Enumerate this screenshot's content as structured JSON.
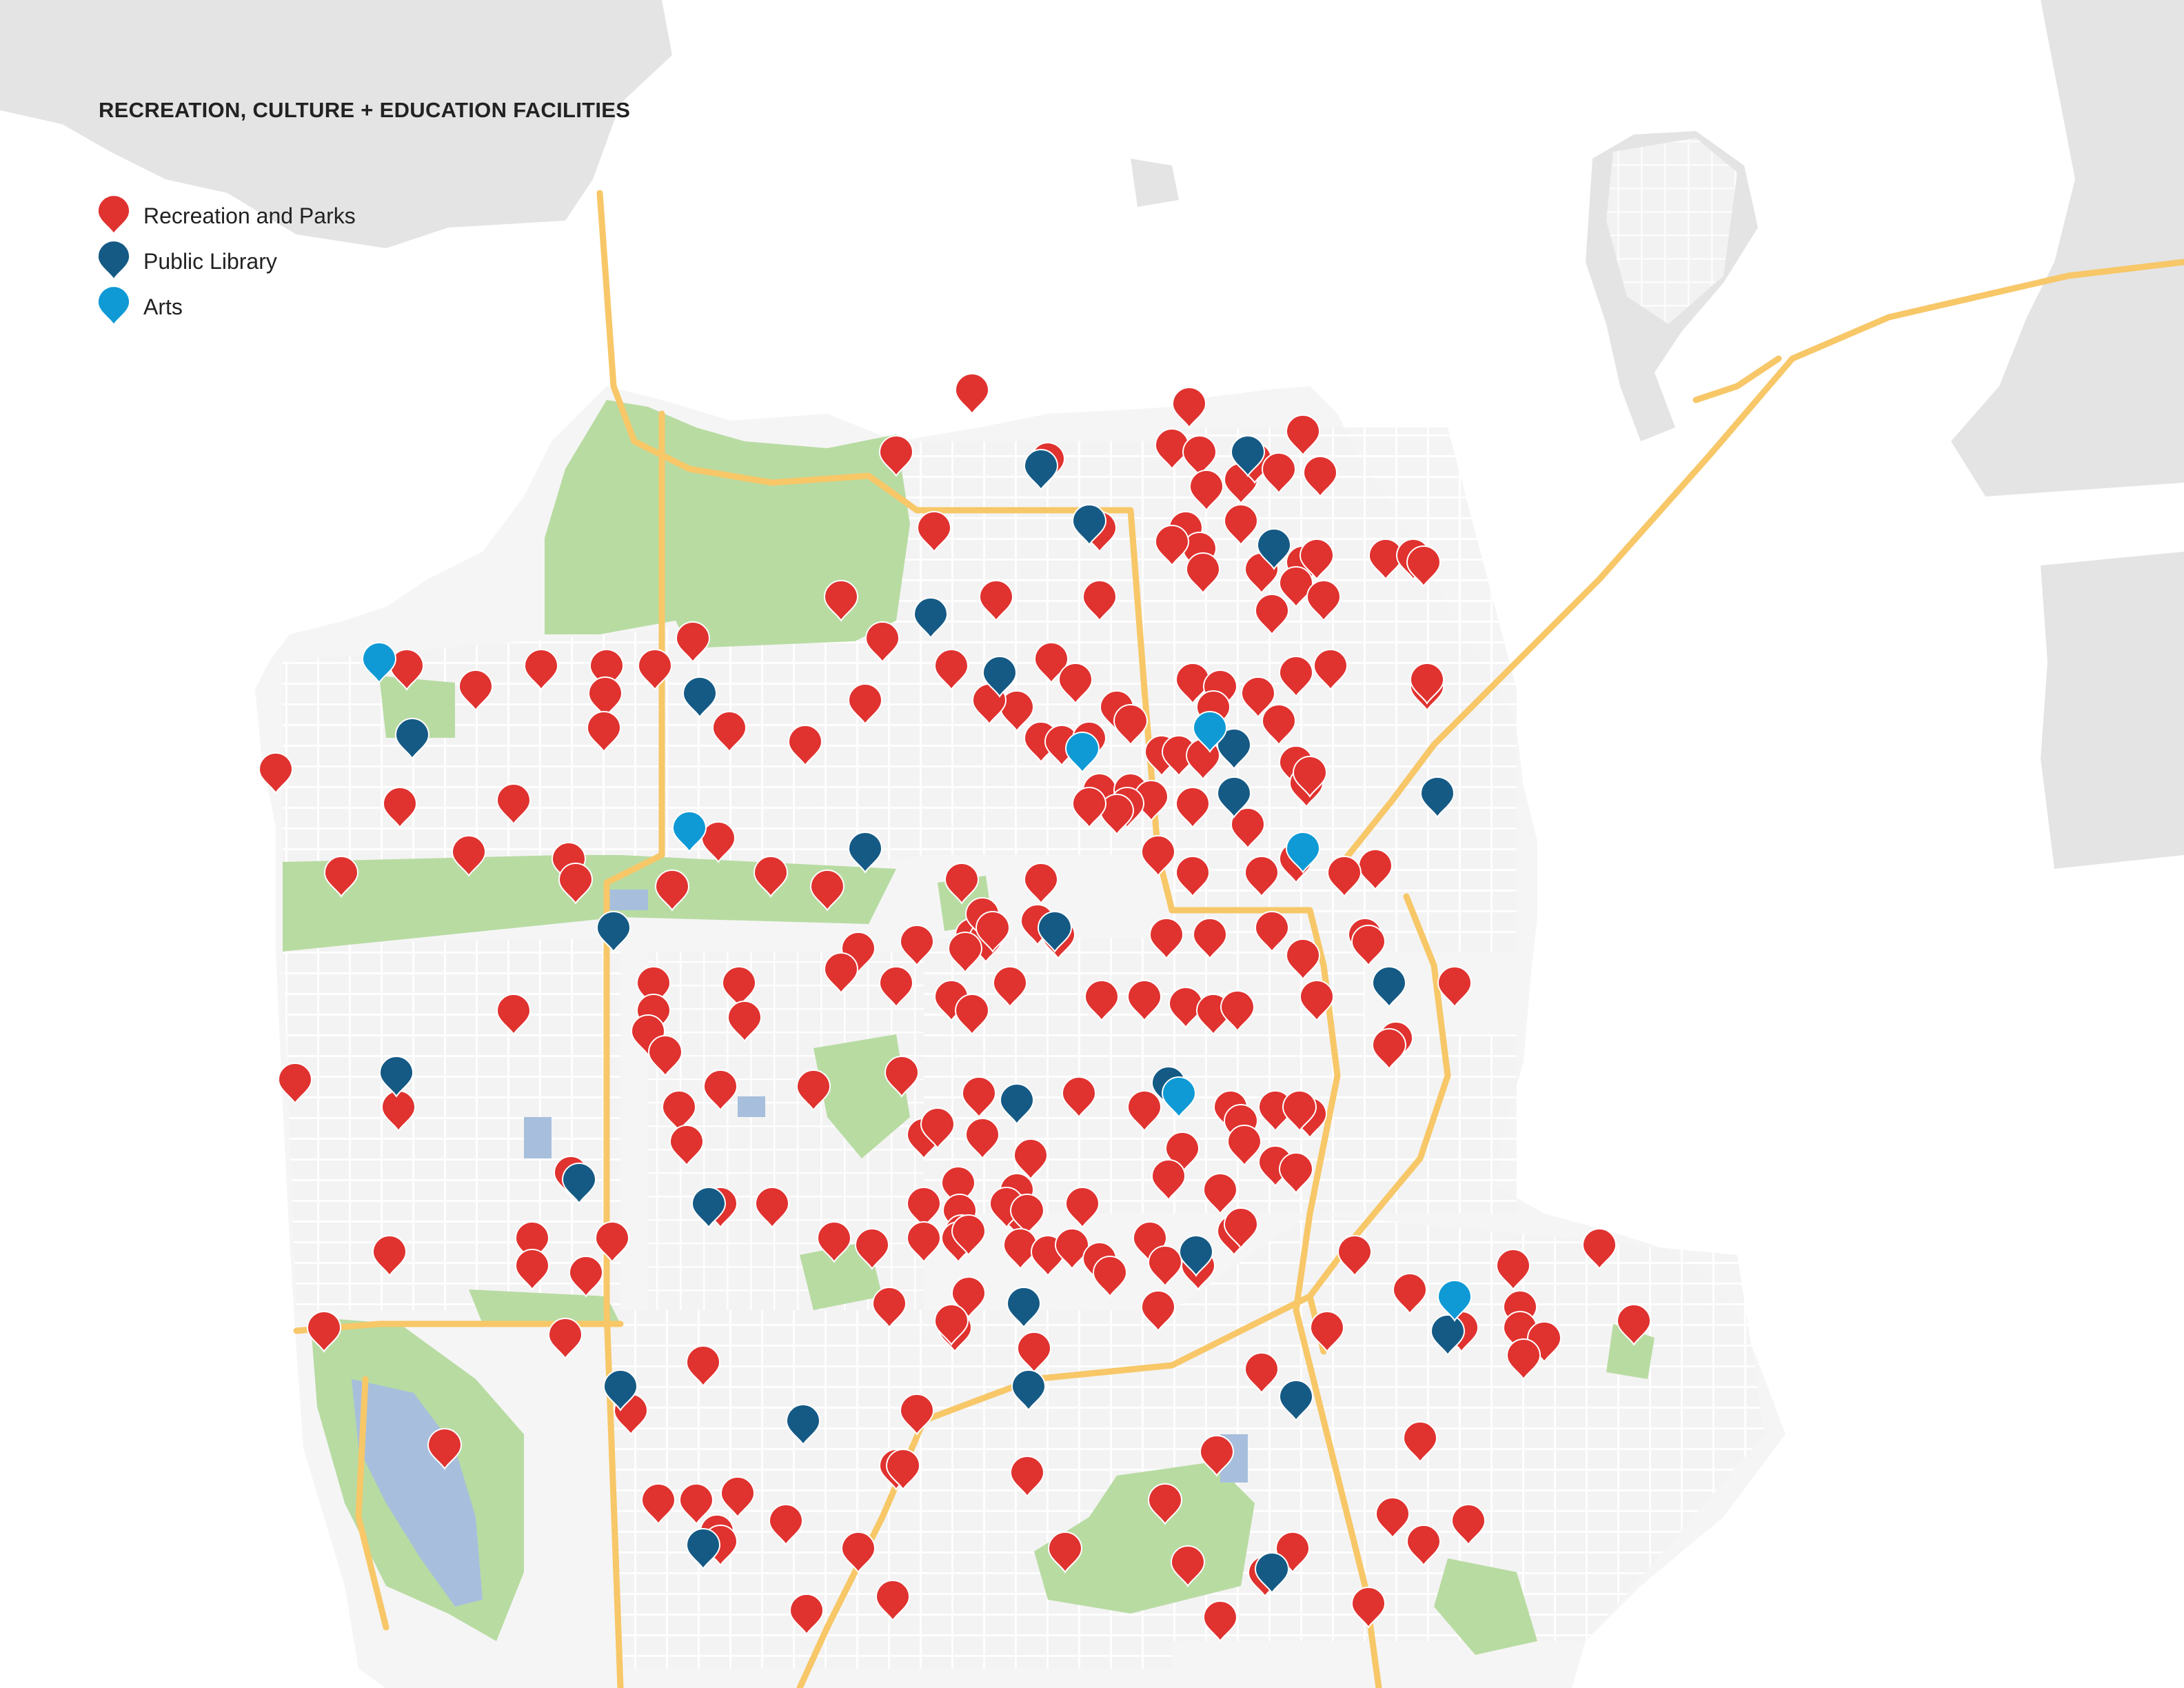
{
  "title": "RECREATION, CULTURE + EDUCATION FACILITIES",
  "legend": {
    "items": [
      {
        "label": "Recreation and Parks",
        "color": "#e0322f",
        "icon": "map-pin-icon"
      },
      {
        "label": "Public Library",
        "color": "#155a85",
        "icon": "map-pin-icon"
      },
      {
        "label": "Arts",
        "color": "#0f9ad6",
        "icon": "map-pin-icon"
      }
    ]
  },
  "colors": {
    "land": "#f5f5f5",
    "surrounding_land": "#e4e4e4",
    "water": "#ffffff",
    "park": "#b8dba2",
    "lake": "#a7bfdc",
    "highway": "#f7c768",
    "street": "#ffffff"
  }
}
